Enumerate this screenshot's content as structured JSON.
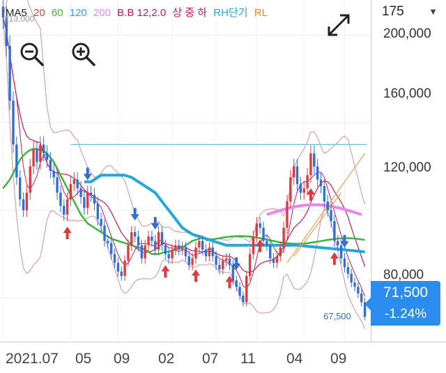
{
  "legend": {
    "ma_label": "MA5",
    "ma20": "20",
    "ma60": "60",
    "ma120": "120",
    "ma200": "200",
    "bb_label": "B.B 12,2.0",
    "indicators": "상 중 하",
    "rh_label": "RH단기",
    "rl_label": "RL"
  },
  "selector": {
    "value": "175"
  },
  "price": {
    "current": "71,500",
    "change": "-1.24%"
  },
  "annotations": {
    "high": "213,000",
    "low": "67,500"
  },
  "colors": {
    "up": "#e0393e",
    "down": "#2f6fd6",
    "ma5": "#c2185b",
    "ma20": "#e0393e",
    "ma60": "#3cb43c",
    "ma120": "#22a7d6",
    "ma200": "#ee82ee",
    "band": "#d4a0a8",
    "price_box": "#2b8cf0",
    "support": "#3ab0c8"
  },
  "icons": [
    "zoom-out-icon",
    "zoom-in-icon",
    "expand-icon",
    "chevron-down-icon",
    "up-arrow-marker",
    "down-arrow-marker"
  ],
  "chart_data": {
    "type": "candlestick",
    "y_ticks": [
      "200,000",
      "160,000",
      "120,000",
      "80,000"
    ],
    "y_tick_values": [
      200000,
      160000,
      120000,
      80000
    ],
    "ylim": [
      60000,
      216000
    ],
    "x_ticks": [
      "2021.07",
      "05",
      "09",
      "02",
      "07",
      "11",
      "04",
      "09"
    ],
    "x_tick_index": [
      0,
      20,
      34,
      50,
      63,
      75,
      89,
      101
    ],
    "n_bars": 108,
    "horizontal_line": 150000,
    "close": [
      208000,
      195000,
      170000,
      150000,
      135000,
      125000,
      120000,
      128000,
      140000,
      148000,
      142000,
      150000,
      146000,
      143000,
      138000,
      135000,
      128000,
      122000,
      118000,
      125000,
      132000,
      134000,
      130000,
      126000,
      121000,
      128000,
      127000,
      123000,
      116000,
      113000,
      106000,
      105000,
      100000,
      96000,
      92000,
      90000,
      97000,
      104000,
      110000,
      108000,
      104000,
      98000,
      104000,
      108000,
      106000,
      102000,
      110000,
      104000,
      100000,
      98000,
      102000,
      104000,
      102000,
      103000,
      99000,
      95000,
      98000,
      103000,
      106000,
      102000,
      99000,
      103000,
      99000,
      95000,
      93000,
      97000,
      98000,
      95000,
      88000,
      85000,
      81000,
      78000,
      90000,
      100000,
      108000,
      114000,
      112000,
      106000,
      104000,
      98000,
      96000,
      99000,
      103000,
      112000,
      124000,
      135000,
      140000,
      132000,
      128000,
      130000,
      136000,
      146000,
      140000,
      134000,
      131000,
      124000,
      120000,
      115000,
      106000,
      104000,
      98000,
      94000,
      91000,
      87000,
      85000,
      82000,
      78000,
      71500
    ],
    "ma120": [
      null,
      null,
      null,
      null,
      null,
      null,
      null,
      null,
      null,
      null,
      null,
      null,
      null,
      null,
      null,
      null,
      null,
      null,
      null,
      null,
      null,
      null,
      null,
      null,
      133000,
      133000,
      133000,
      134000,
      135000,
      136000,
      136000,
      136000,
      136000,
      136000,
      136000,
      136000,
      136000,
      135500,
      135000,
      134000,
      133000,
      132000,
      131000,
      130000,
      129000,
      128000,
      126000,
      124000,
      122000,
      120000,
      118000,
      116000,
      114000,
      112000,
      111000,
      110000,
      109000,
      108500,
      108000,
      107500,
      107000,
      106500,
      106000,
      105500,
      105000,
      104500,
      104000,
      104000,
      104000,
      104000,
      104000,
      104000,
      104000,
      104000,
      104000,
      104000,
      104000,
      104000,
      104000,
      104000,
      104000,
      104000,
      104000,
      104000,
      104000,
      104000,
      104000
    ],
    "ma60": [
      130000,
      132000,
      134000,
      137000,
      140000,
      143000,
      145000,
      146500,
      147500,
      148000,
      148000,
      147500,
      147000,
      146000,
      144000,
      142000,
      139000,
      136000,
      133000,
      130000,
      127000,
      124000,
      121000,
      118000,
      116000,
      114000,
      113000,
      112000,
      111000,
      110000,
      109000,
      108000,
      107000,
      106500,
      106000,
      105500,
      105000,
      104500,
      104000,
      103500,
      103000,
      102500,
      102000,
      101000,
      100000,
      100000,
      100000,
      100500,
      101000,
      101000,
      101500,
      102000,
      102500,
      103000,
      104000,
      105000,
      106000,
      106500,
      107000,
      107500,
      107000
    ]
  }
}
